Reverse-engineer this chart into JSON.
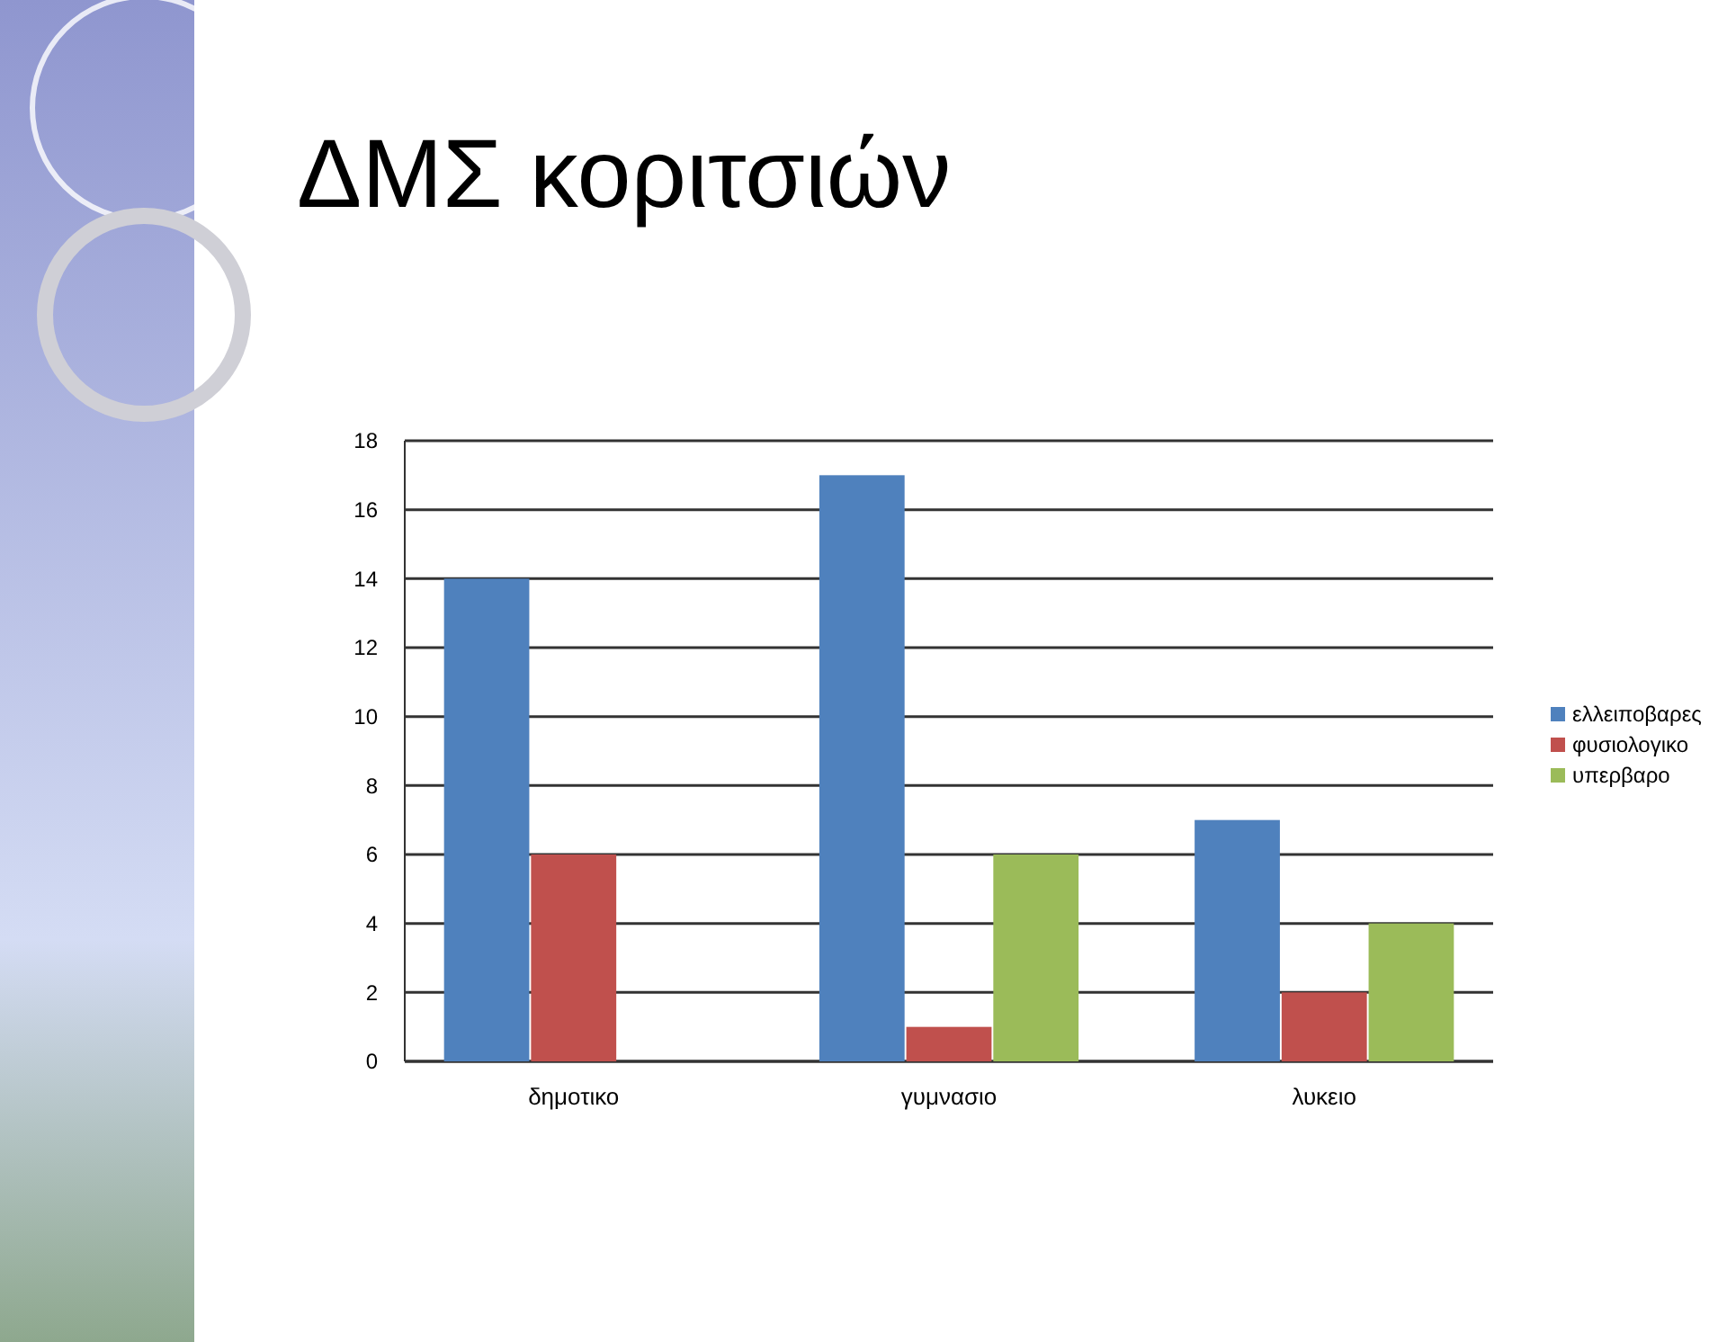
{
  "chart_data": {
    "type": "bar",
    "title": "ΔΜΣ κοριτσιών",
    "categories": [
      "δημοτικο",
      "γυμνασιο",
      "λυκειο"
    ],
    "series": [
      {
        "name": "ελλειποβαρες",
        "color": "#4f81bd",
        "values": [
          14,
          17,
          7
        ]
      },
      {
        "name": "φυσιολογικο",
        "color": "#c0504d",
        "values": [
          6,
          1,
          2
        ]
      },
      {
        "name": "υπερβαρο",
        "color": "#9bbb59",
        "values": [
          0,
          6,
          4
        ]
      }
    ],
    "ylim": [
      0,
      18
    ],
    "yticks": [
      0,
      2,
      4,
      6,
      8,
      10,
      12,
      14,
      16,
      18
    ],
    "grid": "y",
    "legend": "right"
  }
}
